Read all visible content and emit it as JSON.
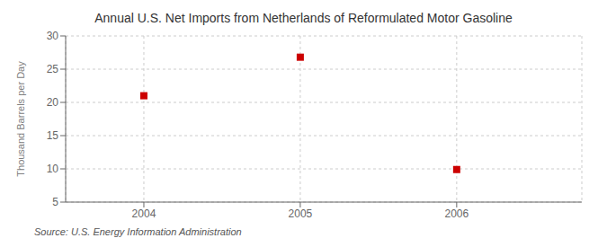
{
  "chart_data": {
    "type": "scatter",
    "title": "Annual U.S. Net Imports from Netherlands of Reformulated Motor Gasoline",
    "ylabel": "Thousand Barrels per Day",
    "annotation": "Source: U.S. Energy Information Administration",
    "x": [
      2004,
      2005,
      2006
    ],
    "values": [
      21.0,
      26.8,
      9.9
    ],
    "color": "#cc0000",
    "marker": "square",
    "xlim": [
      2003.5,
      2006.8
    ],
    "xticks": [
      2004,
      2005,
      2006
    ],
    "ylim": [
      5,
      30
    ],
    "yticks": [
      5,
      10,
      15,
      20,
      25,
      30
    ],
    "grid": true
  }
}
